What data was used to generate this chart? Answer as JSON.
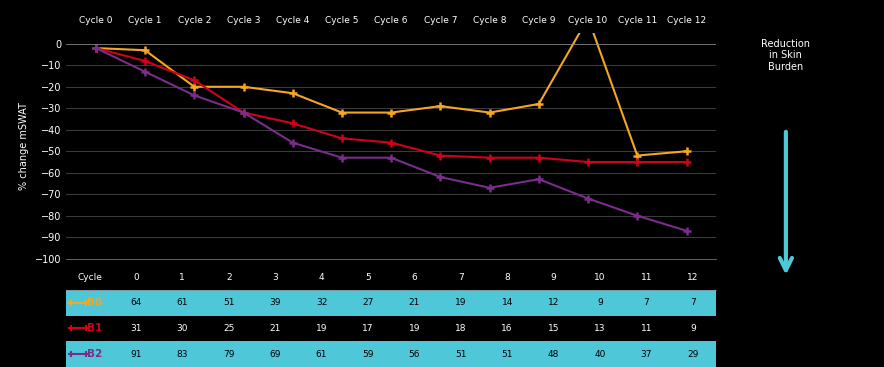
{
  "cycles": [
    0,
    1,
    2,
    3,
    4,
    5,
    6,
    7,
    8,
    9,
    10,
    11,
    12
  ],
  "cycle_labels": [
    "Cycle 0",
    "Cycle 1",
    "Cycle 2",
    "Cycle 3",
    "Cycle 4",
    "Cycle 5",
    "Cycle 6",
    "Cycle 7",
    "Cycle 8",
    "Cycle 9",
    "Cycle 10",
    "Cycle 11",
    "Cycle 12"
  ],
  "B0_y": [
    -2,
    -3,
    -20,
    -20,
    -23,
    -32,
    -32,
    -29,
    -32,
    -28,
    12,
    -52,
    -50
  ],
  "B1_y": [
    -2,
    -8,
    -17,
    -32,
    -37,
    -44,
    -46,
    -52,
    -53,
    -53,
    -55,
    -55,
    -55
  ],
  "B2_y": [
    -2,
    -13,
    -24,
    -32,
    -46,
    -53,
    -53,
    -62,
    -67,
    -63,
    -72,
    -80,
    -87
  ],
  "B0_n": [
    64,
    61,
    51,
    39,
    32,
    27,
    21,
    19,
    14,
    12,
    9,
    7,
    7
  ],
  "B1_n": [
    31,
    30,
    25,
    21,
    19,
    17,
    19,
    18,
    16,
    15,
    13,
    11,
    9
  ],
  "B2_n": [
    91,
    83,
    79,
    69,
    61,
    59,
    56,
    51,
    51,
    48,
    40,
    37,
    29
  ],
  "B0_color": "#F5A623",
  "B1_color": "#D0021B",
  "B2_color": "#7B2D8B",
  "ylabel": "% change mSWAT",
  "ylim": [
    -100,
    5
  ],
  "yticks": [
    0,
    -10,
    -20,
    -30,
    -40,
    -50,
    -60,
    -70,
    -80,
    -90,
    -100
  ],
  "bg_color": "#000000",
  "plot_bg": "#000000",
  "grid_color": "#555555",
  "table_bg_cyan": "#4EC8D8",
  "arrow_color": "#4EC8D8",
  "reduction_text": "Reduction\nin Skin\nBurden"
}
